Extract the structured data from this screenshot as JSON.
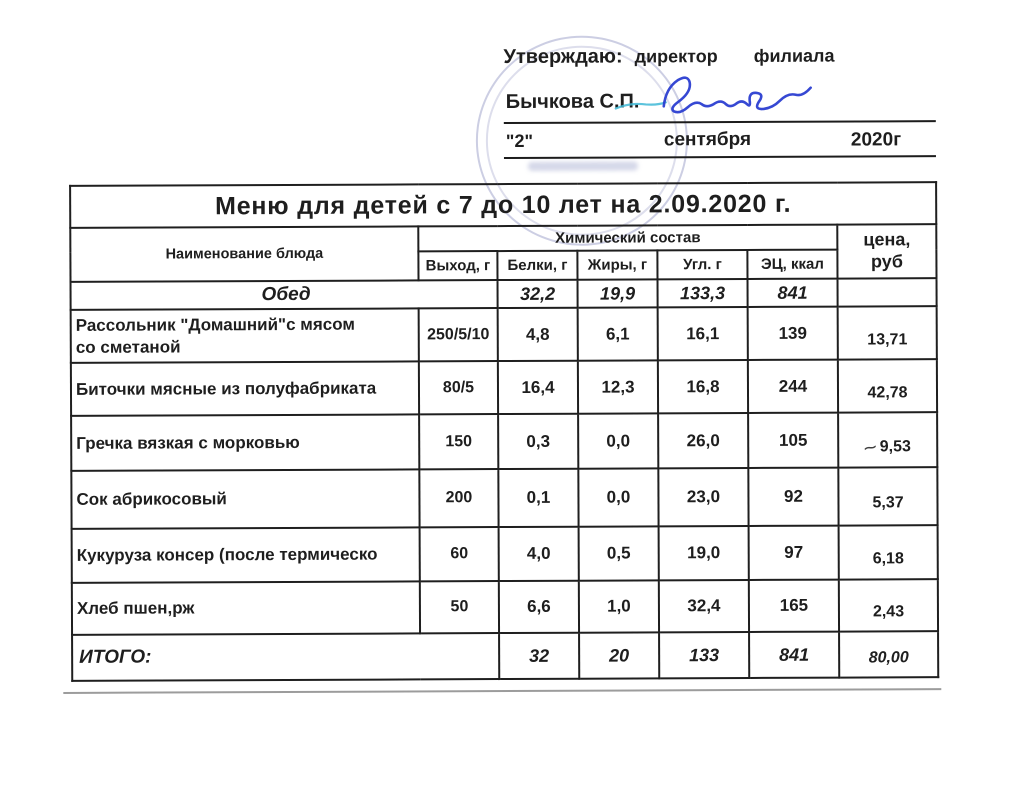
{
  "page": {
    "ink_color": "#1e1e1e",
    "signature_color": "#2b3ed1",
    "stamp_color": "#7a7eb6"
  },
  "approval": {
    "prefix": "Утверждаю:",
    "role": "директор",
    "org": "филиала",
    "signer": "Бычкова С.П.",
    "day": "\"2\"",
    "month": "сентября",
    "year": "2020г"
  },
  "menu": {
    "title": "Меню для детей с 7 до 10 лет на 2.09.2020 г.",
    "header": {
      "dish": "Наименование блюда",
      "chem_group": "Химический состав",
      "chem_cols": [
        "Выход, г",
        "Белки, г",
        "Жиры, г",
        "Угл. г",
        "ЭЦ, ккал"
      ],
      "price": "цена,\nруб"
    },
    "rows": [
      {
        "type": "section",
        "name": "Обед",
        "out": "",
        "protein": "32,2",
        "fat": "19,9",
        "carbs": "133,3",
        "energy": "841",
        "price": ""
      },
      {
        "type": "item",
        "name": "Рассольник \"Домашний\"с мясом\nсо сметаной",
        "out": "250/5/10",
        "protein": "4,8",
        "fat": "6,1",
        "carbs": "16,1",
        "energy": "139",
        "price": "13,71"
      },
      {
        "type": "item",
        "name": "Биточки мясные из полуфабриката",
        "out": "80/5",
        "protein": "16,4",
        "fat": "12,3",
        "carbs": "16,8",
        "energy": "244",
        "price": "42,78"
      },
      {
        "type": "item",
        "name": "Гречка вязкая с морковью",
        "out": "150",
        "protein": "0,3",
        "fat": "0,0",
        "carbs": "26,0",
        "energy": "105",
        "price": "9,53",
        "price_mark": "⁓"
      },
      {
        "type": "item",
        "name": "Сок абрикосовый",
        "out": "200",
        "protein": "0,1",
        "fat": "0,0",
        "carbs": "23,0",
        "energy": "92",
        "price": "5,37"
      },
      {
        "type": "item",
        "name": "Кукуруза консер (после термическо",
        "out": "60",
        "protein": "4,0",
        "fat": "0,5",
        "carbs": "19,0",
        "energy": "97",
        "price": "6,18"
      },
      {
        "type": "item",
        "name": "Хлеб пшен,рж",
        "out": "50",
        "protein": "6,6",
        "fat": "1,0",
        "carbs": "32,4",
        "energy": "165",
        "price": "2,43"
      },
      {
        "type": "total",
        "name": "ИТОГО:",
        "out": "",
        "protein": "32",
        "fat": "20",
        "carbs": "133",
        "energy": "841",
        "price": "80,00"
      }
    ]
  }
}
